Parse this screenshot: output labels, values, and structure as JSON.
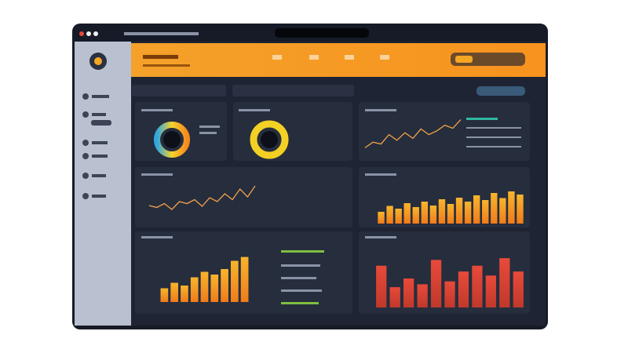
{
  "line_charts": [
    {
      "values": [
        20,
        35,
        30,
        55,
        40,
        60,
        45,
        70,
        55,
        65,
        80,
        72,
        95
      ]
    },
    {
      "values": [
        40,
        35,
        45,
        30,
        50,
        45,
        55,
        38,
        60,
        50,
        70,
        55,
        82,
        62,
        90
      ]
    }
  ],
  "bar_charts": [
    {
      "values": [
        30,
        45,
        38,
        52,
        42,
        56,
        46,
        62,
        50,
        66,
        56,
        72,
        60,
        78,
        65,
        82,
        74
      ]
    },
    {
      "values": [
        25,
        35,
        30,
        45,
        55,
        50,
        60,
        75,
        82
      ]
    },
    {
      "values": [
        72,
        35,
        50,
        40,
        82,
        45,
        62,
        72,
        55,
        85,
        62
      ]
    }
  ]
}
